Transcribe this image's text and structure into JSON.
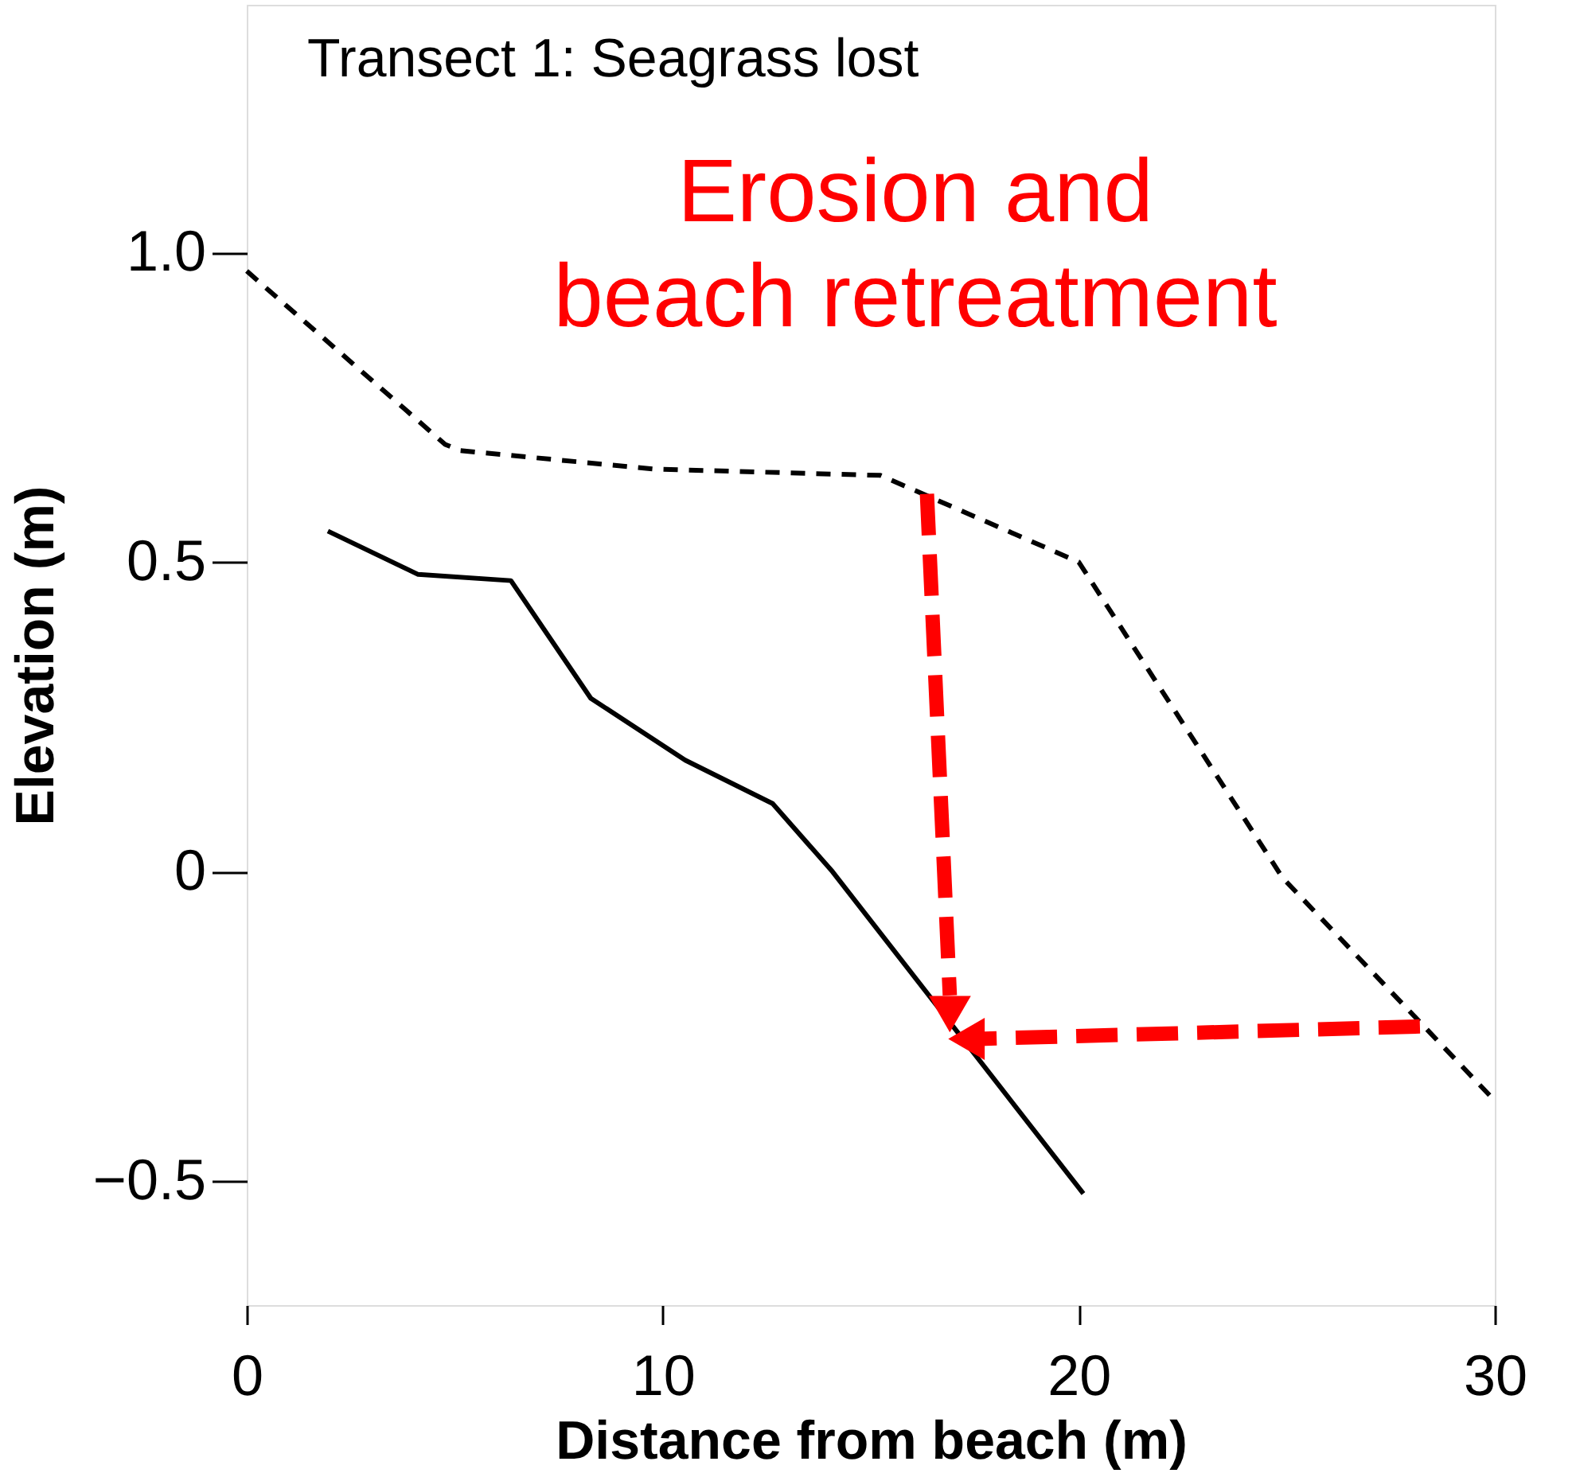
{
  "chart_data": {
    "type": "line",
    "title": "Transect 1: Seagrass lost",
    "xlabel": "Distance from beach (m)",
    "ylabel": "Elevation (m)",
    "annotations": [
      "Erosion and\nbeach retreatment"
    ],
    "xlim": [
      0,
      30
    ],
    "xticks": [
      0,
      10,
      20,
      30
    ],
    "ylim": [
      -0.7,
      1.4
    ],
    "yticks": [
      {
        "value": -0.5,
        "label": "−0.5"
      },
      {
        "value": 0,
        "label": "0"
      },
      0.5,
      {
        "value": 1.0,
        "label": "1.0"
      }
    ],
    "grid": false,
    "marker": "none",
    "series": [
      {
        "color": "#000000",
        "line_style": "solid",
        "x": [
          1.95,
          4.12,
          6.35,
          8.27,
          10.54,
          12.64,
          14.08,
          20.11
        ],
        "values": [
          0.55,
          0.48,
          0.47,
          0.28,
          0.18,
          0.11,
          0.0,
          -0.52
        ]
      },
      {
        "color": "#000000",
        "line_style": "dashed",
        "x": [
          0,
          4.77,
          5.13,
          9.82,
          15.23,
          20.0,
          24.9,
          30
        ],
        "values": [
          0.97,
          0.69,
          0.68,
          0.65,
          0.64,
          0.5,
          -0.01,
          -0.37
        ]
      }
    ]
  }
}
